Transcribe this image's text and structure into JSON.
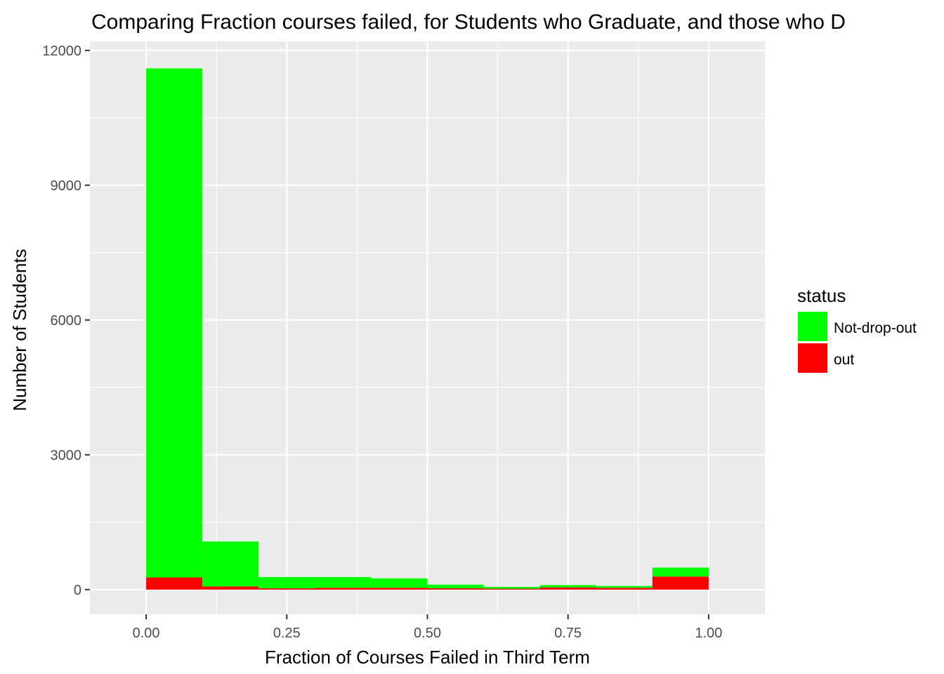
{
  "chart_data": {
    "type": "bar",
    "stacked": true,
    "title": "Comparing Fraction courses failed, for Students who Graduate, and those who D",
    "xlabel": "Fraction of Courses Failed in Third Term",
    "ylabel": "Number of Students",
    "xlim": [
      -0.1,
      1.1
    ],
    "ylim": [
      -550,
      12200
    ],
    "xticks": [
      0.0,
      0.25,
      0.5,
      0.75,
      1.0
    ],
    "xtick_labels": [
      "0.00",
      "0.25",
      "0.50",
      "0.75",
      "1.00"
    ],
    "yticks": [
      0,
      3000,
      6000,
      9000,
      12000
    ],
    "ytick_labels": [
      "0",
      "3000",
      "6000",
      "9000",
      "12000"
    ],
    "grid": true,
    "bins": [
      [
        0.0,
        0.1
      ],
      [
        0.1,
        0.2
      ],
      [
        0.2,
        0.3
      ],
      [
        0.3,
        0.4
      ],
      [
        0.4,
        0.5
      ],
      [
        0.5,
        0.6
      ],
      [
        0.6,
        0.7
      ],
      [
        0.7,
        0.8
      ],
      [
        0.8,
        0.9
      ],
      [
        0.9,
        1.0
      ]
    ],
    "series": [
      {
        "name": "out",
        "color": "#ff0000",
        "values": [
          270,
          70,
          30,
          40,
          40,
          30,
          20,
          50,
          40,
          290
        ]
      },
      {
        "name": "Not-drop-out",
        "color": "#00ff00",
        "values": [
          11330,
          1000,
          250,
          240,
          210,
          80,
          40,
          50,
          40,
          200
        ]
      }
    ],
    "legend": {
      "title": "status",
      "position": "right",
      "items": [
        {
          "label": "Not-drop-out",
          "color": "#00ff00"
        },
        {
          "label": "out",
          "color": "#ff0000"
        }
      ]
    },
    "panel_color": "#ebebeb",
    "grid_color": "#ffffff"
  }
}
